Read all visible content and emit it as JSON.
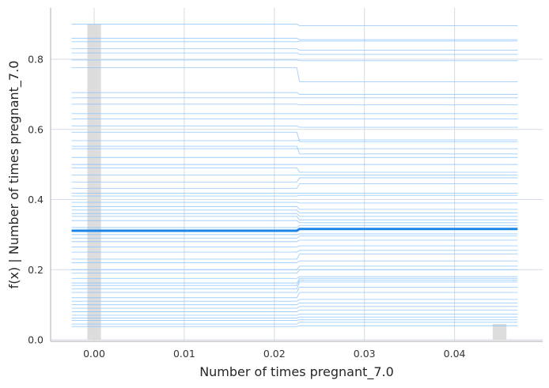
{
  "chart_data": {
    "type": "line",
    "title": "",
    "xlabel": "Number of times pregnant_7.0",
    "ylabel": "f(x) | Number of times pregnant_7.0",
    "xlim": [
      -0.005,
      0.05
    ],
    "ylim": [
      0,
      0.9
    ],
    "x_ticks": [
      0.0,
      0.01,
      0.02,
      0.03,
      0.04
    ],
    "x_tick_labels": [
      "0.00",
      "0.01",
      "0.02",
      "0.03",
      "0.04"
    ],
    "y_ticks": [
      0.0,
      0.2,
      0.4,
      0.6,
      0.8
    ],
    "y_tick_labels": [
      "0.0",
      "0.2",
      "0.4",
      "0.6",
      "0.8"
    ],
    "grid": true,
    "x_points": [
      -0.0025,
      0.0225,
      0.0228,
      0.047
    ],
    "ice_lines": [
      [
        0.9,
        0.9,
        0.896,
        0.896
      ],
      [
        0.86,
        0.86,
        0.856,
        0.856
      ],
      [
        0.85,
        0.85,
        0.852,
        0.852
      ],
      [
        0.83,
        0.83,
        0.826,
        0.826
      ],
      [
        0.818,
        0.818,
        0.814,
        0.814
      ],
      [
        0.798,
        0.798,
        0.796,
        0.796
      ],
      [
        0.776,
        0.776,
        0.736,
        0.736
      ],
      [
        0.705,
        0.705,
        0.7,
        0.7
      ],
      [
        0.69,
        0.69,
        0.69,
        0.69
      ],
      [
        0.672,
        0.672,
        0.67,
        0.67
      ],
      [
        0.645,
        0.645,
        0.645,
        0.645
      ],
      [
        0.63,
        0.63,
        0.63,
        0.63
      ],
      [
        0.61,
        0.61,
        0.606,
        0.606
      ],
      [
        0.592,
        0.592,
        0.565,
        0.565
      ],
      [
        0.568,
        0.568,
        0.57,
        0.57
      ],
      [
        0.552,
        0.552,
        0.53,
        0.53
      ],
      [
        0.545,
        0.545,
        0.545,
        0.545
      ],
      [
        0.52,
        0.52,
        0.52,
        0.52
      ],
      [
        0.5,
        0.5,
        0.5,
        0.5
      ],
      [
        0.49,
        0.49,
        0.478,
        0.478
      ],
      [
        0.47,
        0.47,
        0.47,
        0.47
      ],
      [
        0.45,
        0.45,
        0.462,
        0.462
      ],
      [
        0.432,
        0.432,
        0.445,
        0.445
      ],
      [
        0.418,
        0.418,
        0.418,
        0.418
      ],
      [
        0.41,
        0.41,
        0.412,
        0.412
      ],
      [
        0.392,
        0.392,
        0.39,
        0.39
      ],
      [
        0.38,
        0.38,
        0.372,
        0.372
      ],
      [
        0.37,
        0.37,
        0.362,
        0.362
      ],
      [
        0.36,
        0.36,
        0.352,
        0.352
      ],
      [
        0.352,
        0.352,
        0.342,
        0.342
      ],
      [
        0.34,
        0.34,
        0.334,
        0.334
      ],
      [
        0.32,
        0.32,
        0.326,
        0.326
      ],
      [
        0.3,
        0.3,
        0.302,
        0.302
      ],
      [
        0.29,
        0.29,
        0.296,
        0.296
      ],
      [
        0.28,
        0.28,
        0.284,
        0.284
      ],
      [
        0.265,
        0.265,
        0.268,
        0.268
      ],
      [
        0.25,
        0.25,
        0.255,
        0.255
      ],
      [
        0.23,
        0.23,
        0.245,
        0.245
      ],
      [
        0.22,
        0.22,
        0.225,
        0.225
      ],
      [
        0.2,
        0.2,
        0.21,
        0.21
      ],
      [
        0.19,
        0.19,
        0.2,
        0.2
      ],
      [
        0.175,
        0.175,
        0.18,
        0.18
      ],
      [
        0.162,
        0.162,
        0.175,
        0.175
      ],
      [
        0.155,
        0.155,
        0.17,
        0.17
      ],
      [
        0.145,
        0.145,
        0.165,
        0.165
      ],
      [
        0.135,
        0.135,
        0.15,
        0.15
      ],
      [
        0.12,
        0.12,
        0.135,
        0.135
      ],
      [
        0.11,
        0.11,
        0.115,
        0.115
      ],
      [
        0.1,
        0.1,
        0.105,
        0.105
      ],
      [
        0.09,
        0.09,
        0.095,
        0.095
      ],
      [
        0.08,
        0.08,
        0.085,
        0.085
      ],
      [
        0.07,
        0.07,
        0.073,
        0.073
      ],
      [
        0.062,
        0.062,
        0.065,
        0.065
      ],
      [
        0.055,
        0.055,
        0.057,
        0.057
      ],
      [
        0.045,
        0.045,
        0.05,
        0.05
      ],
      [
        0.038,
        0.038,
        0.04,
        0.04
      ]
    ],
    "average_line": [
      0.311,
      0.311,
      0.316,
      0.316
    ],
    "histogram": [
      {
        "x0": -0.0005,
        "x1": 0.0005,
        "height": 0.9
      },
      {
        "x0": 0.0445,
        "x1": 0.0455,
        "height": 0.045
      }
    ],
    "colors": {
      "ice_line": "#7fbfff",
      "average_line": "#1a85e6",
      "histogram": "#d9d9d9",
      "grid": "#d3dbe6",
      "axis": "#c8c8c8"
    }
  }
}
